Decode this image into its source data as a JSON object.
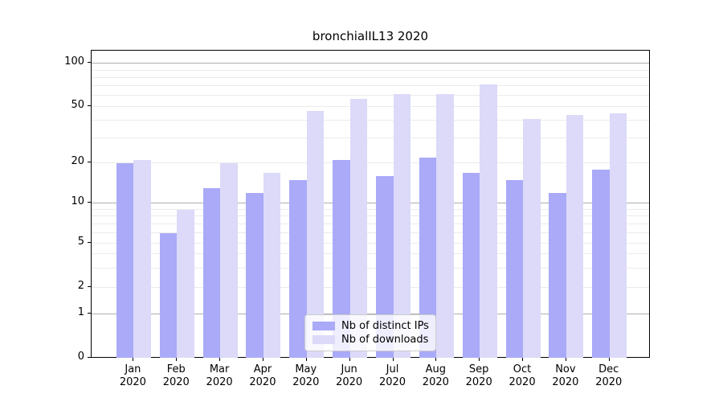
{
  "title": "bronchialIL13 2020",
  "chart_data": {
    "type": "bar",
    "title": "bronchialIL13 2020",
    "categories": [
      "Jan 2020",
      "Feb 2020",
      "Mar 2020",
      "Apr 2020",
      "May 2020",
      "Jun 2020",
      "Jul 2020",
      "Aug 2020",
      "Sep 2020",
      "Oct 2020",
      "Nov 2020",
      "Dec 2020"
    ],
    "series": [
      {
        "name": "Nb of distinct IPs",
        "color": "#aaaaf8",
        "values": [
          20,
          6,
          13,
          12,
          15,
          21,
          16,
          22,
          17,
          15,
          12,
          18
        ]
      },
      {
        "name": "Nb of downloads",
        "color": "#dcdaf8",
        "values": [
          21,
          9,
          20,
          17,
          47,
          57,
          62,
          62,
          72,
          41,
          44,
          45
        ]
      }
    ],
    "yscale": "symlog",
    "ytick_values": [
      0,
      1,
      2,
      5,
      10,
      20,
      50,
      100
    ],
    "ytick_labels": [
      "0",
      "1",
      "2",
      "5",
      "10",
      "20",
      "50",
      "100"
    ],
    "minor_grid_values": [
      2,
      3,
      4,
      5,
      6,
      7,
      8,
      9,
      20,
      30,
      40,
      50,
      60,
      70,
      80,
      90
    ],
    "major_grid_values": [
      1,
      10,
      100
    ],
    "ylim": [
      0,
      125
    ],
    "grid": "on",
    "legend_position": "lower center"
  }
}
